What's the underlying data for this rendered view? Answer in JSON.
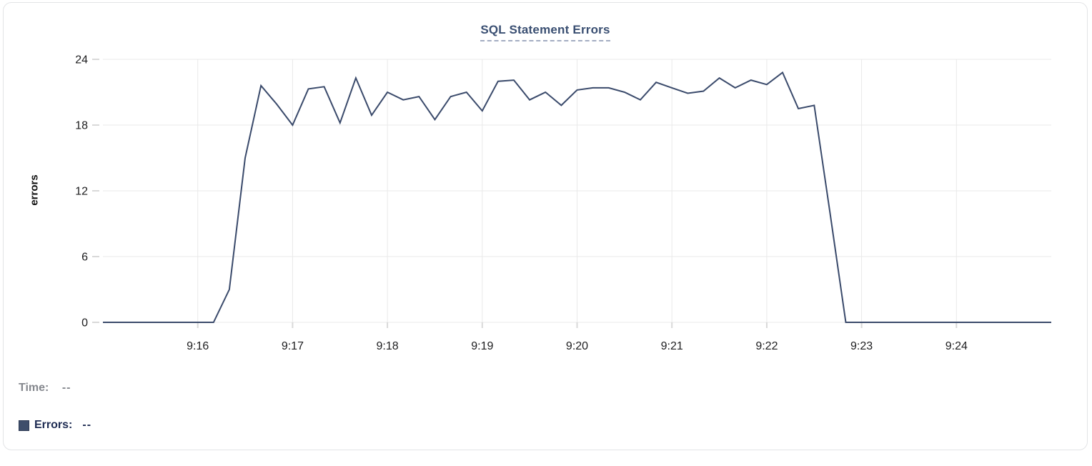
{
  "chart_data": {
    "type": "line",
    "title": "SQL Statement Errors",
    "ylabel": "errors",
    "xlabel": "",
    "ylim": [
      0,
      24
    ],
    "y_ticks": [
      0,
      6,
      12,
      18,
      24
    ],
    "x_tick_labels": [
      "9:16",
      "9:17",
      "9:18",
      "9:19",
      "9:20",
      "9:21",
      "9:22",
      "9:23",
      "9:24"
    ],
    "grid": true,
    "legend_position": "none",
    "series": [
      {
        "name": "Errors",
        "color": "#3a4a6b",
        "start_time": "9:15:00",
        "interval_seconds": 10,
        "values": [
          0,
          0,
          0,
          0,
          0,
          0,
          0,
          0,
          3,
          15,
          21.6,
          19.9,
          18,
          21.3,
          21.5,
          18.2,
          22.3,
          18.9,
          21,
          20.3,
          20.6,
          18.5,
          20.6,
          21,
          19.3,
          22,
          22.1,
          20.3,
          21,
          19.8,
          21.2,
          21.4,
          21.4,
          21,
          20.3,
          21.9,
          21.4,
          20.9,
          21.1,
          22.3,
          21.4,
          22.1,
          21.7,
          22.8,
          19.5,
          19.8,
          10,
          0,
          0,
          0,
          0,
          0,
          0,
          0,
          0,
          0,
          0,
          0,
          0,
          0,
          0
        ]
      }
    ]
  },
  "tooltip": {
    "time_label": "Time:",
    "time_value": "--",
    "errors_label": "Errors:",
    "errors_value": "--",
    "swatch_color": "#3e4e6b"
  },
  "colors": {
    "line": "#3a4a6b",
    "title": "#3a4f72",
    "title_dash": "#a3adc2",
    "grid": "#e9e9e9",
    "tick": "#d9d9d9",
    "axis_text": "#1c1c1e",
    "time_text": "#85888e",
    "errors_text": "#1d2b52",
    "card_border": "#e3e4e6"
  }
}
